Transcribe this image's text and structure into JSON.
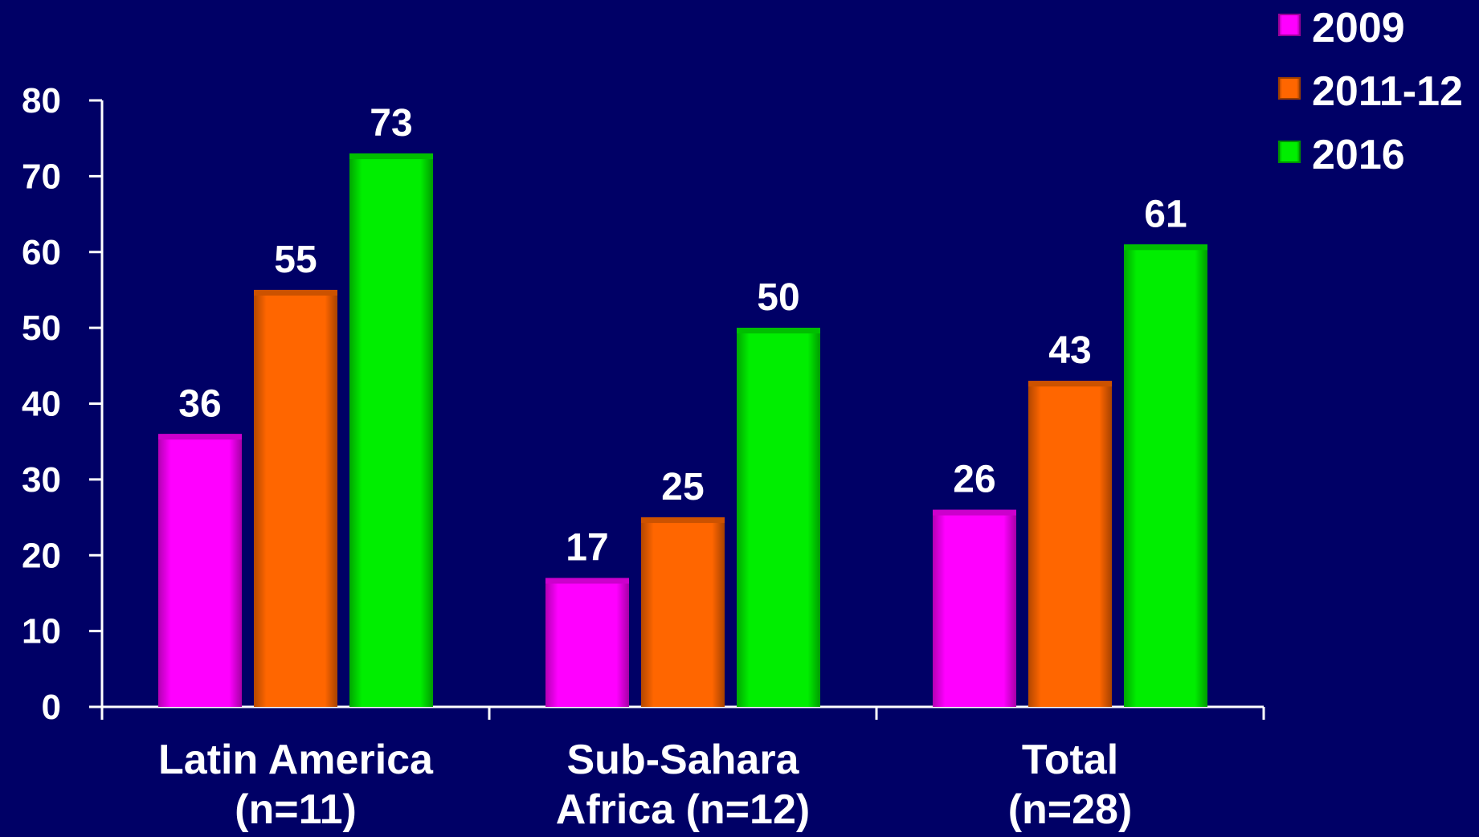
{
  "chart_data": {
    "type": "bar",
    "title": "",
    "xlabel": "",
    "ylabel": "",
    "categories": [
      [
        "Latin America",
        "(n=11)"
      ],
      [
        "Sub-Sahara",
        "Africa (n=12)"
      ],
      [
        "Total",
        "(n=28)"
      ]
    ],
    "series": [
      {
        "name": "2009",
        "color": "#ff00ff",
        "values": [
          36,
          17,
          26
        ]
      },
      {
        "name": "2011-12",
        "color": "#ff6600",
        "values": [
          55,
          25,
          43
        ]
      },
      {
        "name": "2016",
        "color": "#00ee00",
        "values": [
          73,
          50,
          61
        ]
      }
    ],
    "ylim": [
      0,
      80
    ],
    "yticks": [
      0,
      10,
      20,
      30,
      40,
      50,
      60,
      70,
      80
    ],
    "grid": false,
    "legend_position": "top-right",
    "background_color": "#000066",
    "data_labels": true
  }
}
